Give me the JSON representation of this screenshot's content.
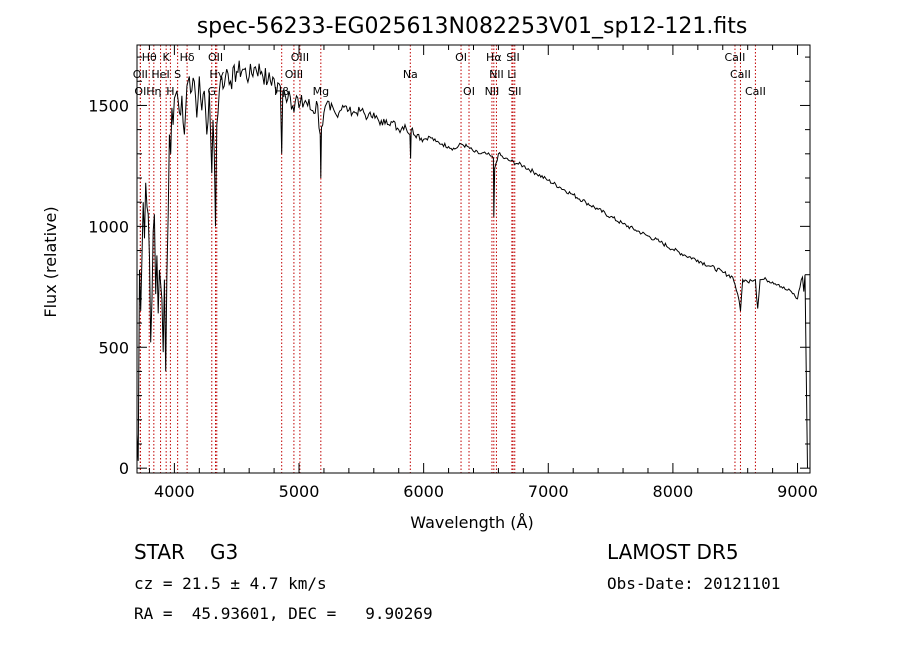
{
  "chart_data": {
    "type": "line",
    "title": "spec-56233-EG025613N082253V01_sp12-121.fits",
    "xlabel": "Wavelength (Å)",
    "ylabel": "Flux (relative)",
    "xlim": [
      3700,
      9100
    ],
    "ylim": [
      -20,
      1750
    ],
    "xticks": [
      4000,
      5000,
      6000,
      7000,
      8000,
      9000
    ],
    "yticks": [
      0,
      500,
      1000,
      1500
    ],
    "grid": false,
    "series": [
      {
        "values_note": "",
        "x": [
          3700,
          3710,
          3720,
          3730,
          3740,
          3750,
          3760,
          3770,
          3780,
          3790,
          3800,
          3810,
          3820,
          3830,
          3840,
          3850,
          3860,
          3870,
          3880,
          3890,
          3900,
          3910,
          3920,
          3930,
          3940,
          3950,
          3960,
          3970,
          3980,
          3990,
          4000,
          4020,
          4040,
          4060,
          4080,
          4100,
          4120,
          4140,
          4160,
          4180,
          4200,
          4220,
          4240,
          4260,
          4280,
          4300,
          4310,
          4320,
          4330,
          4340,
          4360,
          4380,
          4400,
          4420,
          4450,
          4500,
          4550,
          4600,
          4650,
          4700,
          4750,
          4800,
          4820,
          4840,
          4850,
          4861,
          4870,
          4890,
          4920,
          4950,
          4980,
          5000,
          5050,
          5100,
          5150,
          5170,
          5175,
          5180,
          5200,
          5250,
          5300,
          5350,
          5400,
          5450,
          5500,
          5550,
          5600,
          5650,
          5700,
          5750,
          5800,
          5850,
          5890,
          5895,
          5900,
          5950,
          6000,
          6050,
          6100,
          6150,
          6200,
          6250,
          6300,
          6350,
          6400,
          6450,
          6500,
          6540,
          6560,
          6563,
          6570,
          6600,
          6650,
          6700,
          6750,
          6800,
          6900,
          7000,
          7100,
          7200,
          7300,
          7400,
          7500,
          7600,
          7700,
          7800,
          7900,
          8000,
          8100,
          8200,
          8300,
          8400,
          8480,
          8498,
          8520,
          8542,
          8560,
          8600,
          8620,
          8662,
          8680,
          8700,
          8750,
          8800,
          8850,
          8900,
          8950,
          9000,
          9030,
          9040,
          9050,
          9060,
          9070,
          9080
        ],
        "y": [
          140,
          30,
          820,
          650,
          880,
          1100,
          950,
          1180,
          1080,
          1050,
          870,
          520,
          700,
          980,
          1050,
          720,
          880,
          640,
          820,
          760,
          700,
          480,
          780,
          400,
          800,
          1050,
          1380,
          1300,
          1490,
          1420,
          1530,
          1560,
          1470,
          1540,
          1380,
          1580,
          1620,
          1560,
          1600,
          1450,
          1620,
          1480,
          1560,
          1380,
          1560,
          1220,
          1440,
          1300,
          1000,
          1420,
          1560,
          1620,
          1580,
          1650,
          1600,
          1640,
          1650,
          1620,
          1660,
          1640,
          1600,
          1610,
          1550,
          1590,
          1580,
          1300,
          1560,
          1540,
          1560,
          1500,
          1540,
          1490,
          1520,
          1480,
          1500,
          1380,
          1200,
          1410,
          1470,
          1480,
          1460,
          1500,
          1480,
          1470,
          1480,
          1450,
          1470,
          1420,
          1440,
          1430,
          1400,
          1420,
          1380,
          1280,
          1400,
          1380,
          1360,
          1370,
          1350,
          1340,
          1330,
          1320,
          1340,
          1330,
          1310,
          1300,
          1300,
          1290,
          1280,
          1040,
          1240,
          1300,
          1280,
          1270,
          1260,
          1250,
          1220,
          1190,
          1160,
          1130,
          1100,
          1070,
          1040,
          1010,
          985,
          960,
          935,
          905,
          880,
          860,
          835,
          810,
          790,
          760,
          720,
          650,
          780,
          770,
          780,
          780,
          660,
          780,
          780,
          770,
          760,
          740,
          730,
          700,
          780,
          790,
          730,
          800,
          380,
          0
        ]
      }
    ],
    "line_markers": [
      {
        "label": "Hθ",
        "wavelength": 3798,
        "row": 1
      },
      {
        "label": "K",
        "wavelength": 3934,
        "row": 1
      },
      {
        "label": "Hδ",
        "wavelength": 4102,
        "row": 1
      },
      {
        "label": "OII",
        "wavelength": 4330,
        "row": 1
      },
      {
        "label": "OIII",
        "wavelength": 5007,
        "row": 1
      },
      {
        "label": "Na",
        "wavelength": 5893,
        "row": 2
      },
      {
        "label": "OI",
        "wavelength": 6300,
        "row": 1
      },
      {
        "label": "Hα",
        "wavelength": 6563,
        "row": 1
      },
      {
        "label": "SII",
        "wavelength": 6717,
        "row": 1
      },
      {
        "label": "CaII",
        "wavelength": 8498,
        "row": 1
      },
      {
        "label": "OII",
        "wavelength": 3727,
        "row": 2
      },
      {
        "label": "HeI",
        "wavelength": 3889,
        "row": 2
      },
      {
        "label": "S",
        "wavelength": 4026,
        "row": 2
      },
      {
        "label": "Hγ",
        "wavelength": 4340,
        "row": 2
      },
      {
        "label": "OIII",
        "wavelength": 4959,
        "row": 2
      },
      {
        "label": "NII",
        "wavelength": 6584,
        "row": 2
      },
      {
        "label": "Li",
        "wavelength": 6708,
        "row": 2
      },
      {
        "label": "CaII",
        "wavelength": 8542,
        "row": 2
      },
      {
        "label": "OI",
        "wavelength": 3727,
        "row": 3
      },
      {
        "label": "Hη",
        "wavelength": 3835,
        "row": 3
      },
      {
        "label": "H",
        "wavelength": 3968,
        "row": 3
      },
      {
        "label": "G",
        "wavelength": 4300,
        "row": 3
      },
      {
        "label": "Hβ",
        "wavelength": 4861,
        "row": 3
      },
      {
        "label": "Mg",
        "wavelength": 5175,
        "row": 3
      },
      {
        "label": "OI",
        "wavelength": 6364,
        "row": 3
      },
      {
        "label": "NII",
        "wavelength": 6548,
        "row": 3
      },
      {
        "label": "SII",
        "wavelength": 6731,
        "row": 3
      },
      {
        "label": "CaII",
        "wavelength": 8662,
        "row": 3
      }
    ],
    "line_marker_color": "#c00000"
  },
  "info": {
    "object_class": "STAR",
    "subclass": "G3",
    "survey": "LAMOST DR5",
    "redshift_text": "cz = 21.5 ± 4.7 km/s",
    "obs_date_text": "Obs-Date: 20121101",
    "coords_text": "RA =  45.93601, DEC =   9.90269"
  }
}
